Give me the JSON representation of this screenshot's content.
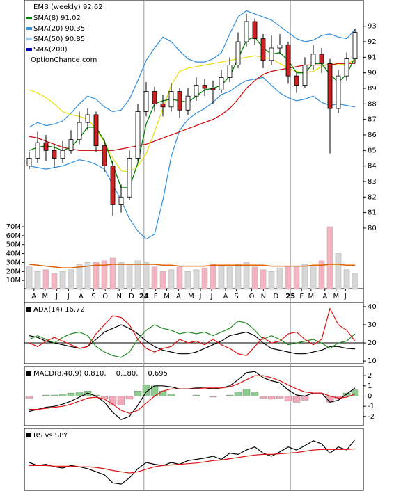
{
  "chart_data": [
    {
      "type": "candlestick",
      "title": "EMB (weekly) 92.62",
      "watermark": "OptionChance.com",
      "x": [
        0,
        3,
        6,
        9,
        12,
        15,
        18,
        21,
        24,
        27,
        30,
        33,
        36,
        39,
        42,
        45,
        48,
        51,
        54,
        57,
        60,
        63,
        66,
        69,
        72,
        75,
        78,
        81,
        84,
        87,
        90,
        93,
        96,
        99,
        102,
        105,
        108,
        111,
        114,
        117
      ],
      "xlim": [
        -1,
        120
      ],
      "xticks": [
        {
          "value": 1.7,
          "label": "A"
        },
        {
          "value": 5.7,
          "label": "M"
        },
        {
          "value": 9.9,
          "label": "J"
        },
        {
          "value": 14.1,
          "label": "J"
        },
        {
          "value": 18.6,
          "label": "A"
        },
        {
          "value": 23.1,
          "label": "S"
        },
        {
          "value": 27.3,
          "label": "O"
        },
        {
          "value": 32.3,
          "label": "N"
        },
        {
          "value": 36.7,
          "label": "D"
        },
        {
          "value": 41.2,
          "label": "24"
        },
        {
          "value": 45.4,
          "label": "F"
        },
        {
          "value": 49.4,
          "label": "M"
        },
        {
          "value": 53.6,
          "label": "A"
        },
        {
          "value": 58.1,
          "label": "M"
        },
        {
          "value": 61.5,
          "label": "J"
        },
        {
          "value": 65.5,
          "label": "J"
        },
        {
          "value": 70.5,
          "label": "A"
        },
        {
          "value": 74.4,
          "label": "S"
        },
        {
          "value": 79.9,
          "label": "O"
        },
        {
          "value": 84.1,
          "label": "N"
        },
        {
          "value": 88.6,
          "label": "D"
        },
        {
          "value": 93.8,
          "label": "25"
        },
        {
          "value": 97.8,
          "label": "F"
        },
        {
          "value": 101.2,
          "label": "M"
        },
        {
          "value": 106.2,
          "label": "A"
        },
        {
          "value": 110.2,
          "label": "M"
        },
        {
          "value": 113.6,
          "label": "J"
        }
      ],
      "ylim": [
        76.1,
        94.6
      ],
      "yticks": [
        80,
        81,
        82,
        83,
        84,
        85,
        86,
        87,
        88,
        89,
        90,
        91,
        92,
        93
      ],
      "open": [
        84.0,
        84.5,
        85.5,
        85.0,
        84.5,
        85.0,
        85.7,
        86.8,
        87.3,
        85.3,
        84.0,
        81.5,
        82.0,
        84.5,
        87.5,
        88.8,
        88.0,
        87.8,
        88.8,
        87.6,
        88.5,
        89.2,
        89.0,
        88.9,
        89.7,
        90.5,
        92.0,
        93.3,
        92.2,
        90.8,
        91.6,
        91.8,
        89.8,
        89.2,
        90.5,
        91.2,
        90.6,
        87.7,
        89.8,
        90.9
      ],
      "high": [
        84.9,
        86.2,
        86.0,
        85.4,
        85.6,
        86.3,
        87.5,
        87.7,
        87.5,
        85.7,
        84.3,
        82.8,
        85.0,
        88.0,
        89.4,
        89.1,
        88.6,
        89.3,
        89.0,
        89.0,
        89.7,
        89.6,
        89.5,
        90.2,
        91.0,
        92.6,
        93.8,
        93.5,
        92.5,
        92.4,
        92.5,
        92.0,
        90.0,
        91.0,
        91.8,
        91.6,
        90.9,
        90.2,
        91.3,
        92.8
      ],
      "low": [
        83.8,
        84.2,
        84.3,
        83.9,
        84.2,
        84.8,
        85.4,
        86.3,
        84.9,
        83.6,
        80.8,
        81.0,
        81.8,
        84.3,
        87.2,
        87.5,
        87.2,
        87.5,
        87.1,
        87.3,
        88.2,
        88.5,
        88.0,
        88.7,
        89.4,
        90.3,
        91.7,
        91.8,
        90.3,
        90.5,
        91.2,
        89.3,
        88.7,
        89.0,
        90.2,
        90.0,
        84.8,
        87.4,
        89.5,
        90.6
      ],
      "close": [
        84.5,
        85.5,
        85.0,
        84.5,
        85.0,
        85.7,
        86.8,
        87.3,
        85.3,
        84.0,
        81.5,
        82.0,
        84.5,
        87.5,
        88.8,
        88.0,
        87.8,
        88.8,
        87.6,
        88.5,
        89.2,
        89.0,
        88.9,
        89.7,
        90.5,
        92.0,
        93.3,
        92.2,
        90.8,
        91.6,
        91.8,
        89.8,
        89.2,
        90.5,
        91.2,
        90.6,
        87.7,
        89.8,
        90.9,
        92.6
      ],
      "up_color": "#ffffff",
      "down_color": "#cc2222",
      "series": [
        {
          "name": "SMA(8) 91.02",
          "color": "#008000",
          "values": [
            85.0,
            85.2,
            85.3,
            85.2,
            85.0,
            85.2,
            85.8,
            86.5,
            86.5,
            85.6,
            84.1,
            82.6,
            82.6,
            84.2,
            86.7,
            88.0,
            88.2,
            88.3,
            88.2,
            88.1,
            88.5,
            88.9,
            89.0,
            89.2,
            89.8,
            90.9,
            92.1,
            92.3,
            91.6,
            91.2,
            91.3,
            90.8,
            90.0,
            90.0,
            90.6,
            90.6,
            89.9,
            89.4,
            89.9,
            91.0
          ]
        }
      ],
      "legend_only": [
        {
          "name": "SMA(20) 90.35",
          "color": "#2f8fe0"
        },
        {
          "name": "SMA(50) 90.85",
          "color": "#99ccf0"
        },
        {
          "name": "SMA(200)",
          "color": "#0000cc"
        }
      ],
      "overlays": [
        {
          "color": "#2f8fe0",
          "values": [
            86.5,
            86.8,
            86.6,
            86.7,
            86.9,
            87.4,
            88.0,
            88.5,
            88.3,
            87.8,
            87.5,
            87.6,
            88.3,
            89.5,
            90.8,
            91.6,
            92.3,
            92.0,
            91.4,
            90.9,
            90.7,
            90.7,
            90.9,
            91.3,
            92.5,
            93.6,
            94.0,
            93.8,
            93.6,
            93.4,
            93.0,
            92.6,
            92.2,
            92.0,
            92.1,
            92.4,
            92.5,
            92.3,
            92.2,
            92.8
          ]
        },
        {
          "color": "#2f8fe0",
          "values": [
            84.0,
            83.9,
            83.8,
            83.9,
            84.0,
            84.2,
            84.4,
            84.3,
            84.1,
            83.8,
            82.8,
            81.8,
            80.6,
            79.8,
            79.3,
            79.6,
            81.8,
            84.6,
            86.3,
            87.0,
            87.4,
            87.7,
            88.1,
            88.6,
            88.8,
            89.2,
            89.5,
            89.6,
            89.7,
            89.2,
            88.7,
            88.4,
            88.2,
            88.3,
            88.5,
            88.1,
            87.9,
            88.0,
            87.9,
            87.8
          ]
        },
        {
          "color": "#e8e000",
          "values": [
            88.9,
            88.7,
            88.4,
            88.0,
            87.5,
            87.3,
            87.2,
            87.0,
            86.4,
            85.5,
            84.5,
            83.7,
            83.6,
            84.0,
            84.8,
            86.2,
            87.7,
            89.2,
            90.1,
            90.3,
            90.4,
            90.5,
            90.6,
            90.7,
            90.8,
            90.9,
            91.0,
            91.1,
            91.0,
            90.9,
            90.6,
            90.3,
            90.1,
            90.0,
            90.1,
            90.4,
            90.6,
            90.5,
            90.6,
            90.8
          ]
        },
        {
          "color": "#cc0000",
          "values": [
            85.9,
            85.8,
            85.6,
            85.4,
            85.2,
            85.1,
            85.0,
            85.0,
            85.0,
            85.0,
            85.0,
            85.1,
            85.2,
            85.3,
            85.4,
            85.6,
            85.8,
            86.0,
            86.2,
            86.4,
            86.6,
            86.8,
            87.0,
            87.3,
            87.7,
            88.3,
            89.0,
            89.5,
            89.9,
            90.1,
            90.2,
            90.3,
            90.4,
            90.5,
            90.5,
            90.5,
            90.5,
            90.6,
            90.6,
            90.6
          ]
        }
      ],
      "volume": {
        "up_color": "#d8d8d8",
        "down_color": "#f4b4c0",
        "avg_color": "#e06000",
        "ylim": [
          0,
          70
        ],
        "yticks": [
          {
            "value": 10,
            "label": "10M"
          },
          {
            "value": 20,
            "label": "20M"
          },
          {
            "value": 30,
            "label": "30M"
          },
          {
            "value": 40,
            "label": "40M"
          },
          {
            "value": 50,
            "label": "50M"
          },
          {
            "value": 60,
            "label": "60M"
          },
          {
            "value": 70,
            "label": "70M"
          }
        ],
        "values": [
          25,
          20,
          22,
          18,
          20,
          22,
          28,
          30,
          30,
          32,
          35,
          30,
          28,
          32,
          30,
          25,
          20,
          22,
          25,
          20,
          22,
          24,
          28,
          26,
          25,
          28,
          30,
          25,
          22,
          20,
          24,
          26,
          25,
          28,
          25,
          32,
          70,
          40,
          22,
          18
        ],
        "avg": [
          28,
          27,
          26,
          25,
          24,
          24,
          25,
          26,
          27,
          27,
          28,
          28,
          28,
          28,
          28,
          28,
          27,
          27,
          26,
          26,
          26,
          26,
          27,
          27,
          27,
          27,
          27,
          27,
          27,
          26,
          26,
          26,
          26,
          26,
          27,
          27,
          28,
          28,
          27,
          27
        ]
      }
    },
    {
      "type": "line",
      "title": "ADX(14) 16.72",
      "ylim": [
        8.5,
        42.3
      ],
      "yticks": [
        10,
        20,
        30,
        40
      ],
      "hline": 20,
      "series": [
        {
          "color": "#000000",
          "values": [
            24,
            23,
            21,
            20,
            19,
            18,
            17,
            18,
            22,
            26,
            28,
            30,
            28,
            25,
            21,
            18,
            16,
            15,
            14,
            14,
            15,
            17,
            19,
            21,
            24,
            25,
            26,
            24,
            20,
            17,
            16,
            15,
            14,
            14,
            15,
            16,
            18,
            18,
            17,
            16.7
          ]
        },
        {
          "color": "#228b22",
          "values": [
            22,
            24,
            22,
            20,
            23,
            25,
            26,
            24,
            18,
            15,
            13,
            12,
            15,
            22,
            27,
            30,
            28,
            27,
            25,
            26,
            25,
            26,
            24,
            26,
            28,
            32,
            31,
            27,
            22,
            24,
            22,
            19,
            20,
            21,
            22,
            20,
            17,
            20,
            21,
            25
          ]
        },
        {
          "color": "#dd1111",
          "values": [
            20,
            18,
            21,
            23,
            21,
            19,
            17,
            18,
            25,
            30,
            35,
            34,
            30,
            22,
            17,
            15,
            17,
            18,
            22,
            20,
            21,
            19,
            22,
            19,
            17,
            14,
            13,
            18,
            23,
            20,
            21,
            25,
            26,
            22,
            19,
            22,
            39,
            30,
            27,
            21
          ]
        }
      ]
    },
    {
      "type": "line",
      "title_parts": [
        {
          "text": "MACD(8,40,9) 0.810,",
          "color": "#000000"
        },
        {
          "text": "0.180,",
          "color": "#cc0000"
        },
        {
          "text": "0.695",
          "color": "#3366cc"
        }
      ],
      "ylim": [
        -2.9,
        2.9
      ],
      "yticks": [
        -2,
        -1,
        0,
        1,
        2
      ],
      "histogram": {
        "up_color": "#8fcc8f",
        "down_color": "#f0a8b8",
        "values": [
          -0.2,
          0.0,
          0.1,
          0.1,
          0.2,
          0.3,
          0.4,
          0.5,
          0.1,
          -0.3,
          -0.8,
          -0.9,
          -0.3,
          0.5,
          1.1,
          1.0,
          0.5,
          0.2,
          0.0,
          0.0,
          0.1,
          0.0,
          -0.1,
          0.0,
          0.1,
          0.4,
          0.7,
          0.4,
          -0.2,
          -0.3,
          -0.2,
          -0.5,
          -0.6,
          -0.4,
          0.0,
          0.0,
          -0.6,
          -0.2,
          0.3,
          0.6
        ]
      },
      "series": [
        {
          "color": "#000000",
          "values": [
            -1.5,
            -1.3,
            -1.1,
            -1.0,
            -0.8,
            -0.5,
            -0.1,
            0.3,
            0.0,
            -0.6,
            -1.6,
            -2.3,
            -2.0,
            -0.9,
            0.4,
            1.0,
            1.0,
            0.9,
            0.7,
            0.7,
            0.8,
            0.8,
            0.7,
            0.8,
            1.0,
            1.6,
            2.3,
            2.4,
            1.8,
            1.5,
            1.3,
            0.6,
            0.1,
            0.0,
            0.3,
            0.3,
            -0.6,
            -0.4,
            0.2,
            0.8
          ]
        },
        {
          "color": "#dd1111",
          "values": [
            -1.3,
            -1.3,
            -1.2,
            -1.1,
            -1.0,
            -0.8,
            -0.5,
            -0.2,
            -0.1,
            -0.3,
            -0.8,
            -1.4,
            -1.7,
            -1.4,
            -0.7,
            0.0,
            0.5,
            0.7,
            0.7,
            0.7,
            0.7,
            0.8,
            0.8,
            0.8,
            0.9,
            1.2,
            1.6,
            2.0,
            2.0,
            1.8,
            1.5,
            1.1,
            0.7,
            0.4,
            0.3,
            0.3,
            0.0,
            -0.2,
            -0.1,
            0.2
          ]
        }
      ]
    },
    {
      "type": "line",
      "title": "RS vs SPY",
      "ylim": [
        0,
        100
      ],
      "series": [
        {
          "color": "#000000",
          "values": [
            45,
            40,
            42,
            38,
            36,
            40,
            38,
            35,
            30,
            25,
            12,
            10,
            20,
            35,
            45,
            42,
            40,
            45,
            42,
            48,
            50,
            52,
            55,
            50,
            60,
            58,
            65,
            70,
            60,
            55,
            62,
            70,
            65,
            72,
            80,
            75,
            60,
            70,
            65,
            82
          ]
        },
        {
          "color": "#dd1111",
          "values": [
            40,
            40,
            40,
            39,
            39,
            39,
            38,
            38,
            37,
            35,
            32,
            30,
            28,
            30,
            34,
            38,
            40,
            41,
            42,
            43,
            44,
            46,
            48,
            49,
            51,
            53,
            55,
            57,
            58,
            58,
            59,
            60,
            61,
            63,
            65,
            66,
            66,
            66,
            66,
            67
          ]
        }
      ]
    }
  ]
}
